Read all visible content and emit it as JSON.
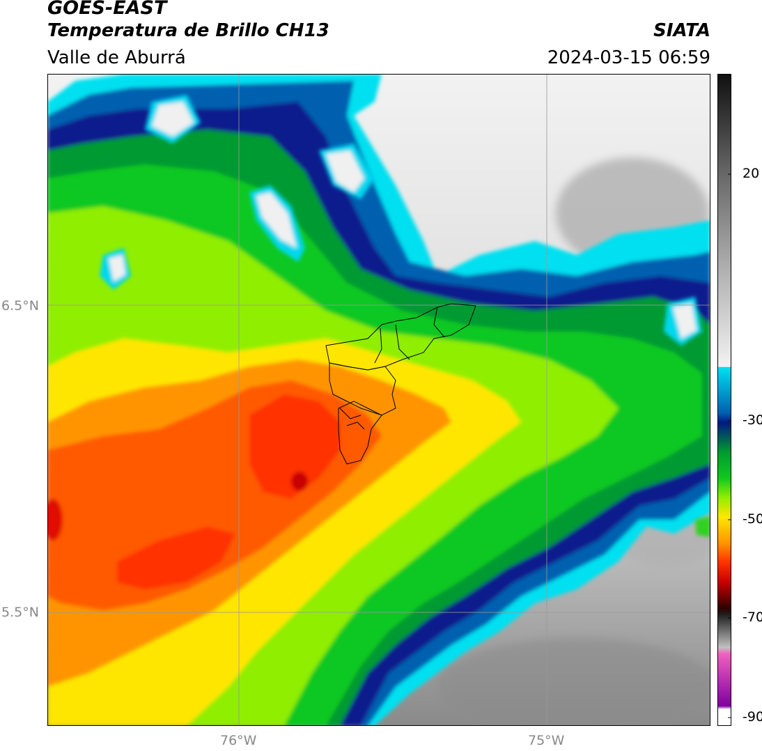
{
  "header": {
    "satellite": "GOES-EAST",
    "product": "Temperatura de Brillo CH13",
    "region": "Valle de Aburrá",
    "agency": "SIATA",
    "datetime": "2024-03-15 06:59"
  },
  "axes": {
    "lat_labels": [
      "6.5°N",
      "5.5°N"
    ],
    "lon_labels": [
      "76°W",
      "75°W"
    ]
  },
  "colorbar": {
    "tick_labels": [
      "20",
      "-30",
      "-50",
      "-70",
      "-90"
    ]
  },
  "colors": {
    "warm_clear": "#f0f0f0",
    "cloud_edge_cyan": "#00e0f0",
    "cloud_blue": "#0050a0",
    "cloud_navy": "#001a80",
    "cloud_green": "#00c020",
    "cloud_lime": "#90f000",
    "cloud_yellow": "#ffe800",
    "cloud_orange": "#ff9000",
    "cloud_red": "#ff3a00",
    "cloud_core": "#d00000"
  }
}
